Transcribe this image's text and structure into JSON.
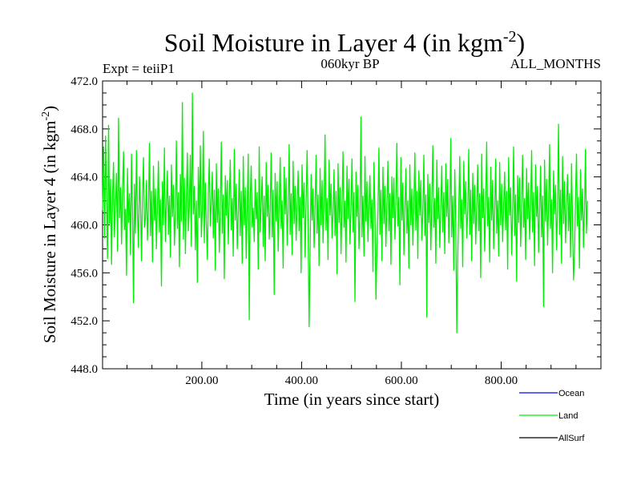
{
  "chart_data": {
    "type": "line",
    "title": {
      "main": "Soil Moisture in Layer 4 (in kgm",
      "sup": "-2",
      "close": ")"
    },
    "header": {
      "left": "Expt = teiiP1",
      "center": "060kyr BP",
      "right": "ALL_MONTHS"
    },
    "xlabel": "Time (in years since start)",
    "ylabel": {
      "main": "Soil Moisture in Layer 4 (in kgm",
      "sup": "-2",
      "close": ")"
    },
    "xlim": [
      1,
      1000
    ],
    "ylim": [
      448.0,
      472.0
    ],
    "x_ticks": [
      200,
      400,
      600,
      800
    ],
    "x_tick_labels": [
      "200.00",
      "400.00",
      "600.00",
      "800.00"
    ],
    "y_ticks": [
      448,
      452,
      456,
      460,
      464,
      468,
      472
    ],
    "y_tick_labels": [
      "448.0",
      "452.0",
      "456.0",
      "460.0",
      "464.0",
      "468.0",
      "472.0"
    ],
    "legend": {
      "placement": "bottom-right",
      "entries": [
        {
          "label": "Ocean",
          "color": "#0000ff"
        },
        {
          "label": "Land",
          "color": "#00ee00"
        },
        {
          "label": "AllSurf",
          "color": "#000000"
        }
      ]
    },
    "series": [
      {
        "name": "Land",
        "color": "#00ee00",
        "x_start": 1,
        "x_step": 2,
        "values": [
          461.2,
          466.5,
          458.9,
          467.4,
          462.0,
          457.2,
          468.3,
          460.1,
          463.8,
          456.7,
          462.5,
          465.2,
          459.0,
          461.7,
          464.3,
          457.8,
          468.9,
          460.6,
          463.1,
          458.4,
          462.9,
          466.1,
          459.6,
          461.3,
          455.8,
          464.7,
          460.2,
          462.6,
          457.5,
          465.9,
          461.0,
          453.5,
          463.4,
          459.3,
          466.2,
          460.8,
          458.1,
          464.0,
          461.9,
          457.0,
          462.2,
          465.6,
          459.8,
          460.5,
          463.7,
          458.7,
          461.4,
          466.8,
          459.1,
          462.8,
          456.9,
          464.9,
          460.4,
          463.0,
          458.0,
          461.6,
          465.3,
          459.4,
          462.1,
          454.9,
          463.6,
          460.0,
          466.4,
          458.6,
          461.8,
          464.5,
          459.2,
          462.4,
          457.3,
          465.0,
          460.7,
          463.3,
          458.3,
          461.1,
          467.0,
          459.7,
          462.7,
          456.5,
          464.2,
          460.3,
          470.2,
          458.8,
          463.9,
          457.6,
          462.3,
          466.0,
          459.5,
          461.5,
          465.8,
          458.2,
          471.0,
          460.9,
          463.2,
          457.9,
          462.0,
          455.2,
          464.8,
          460.6,
          466.6,
          459.0,
          461.2,
          467.8,
          458.5,
          463.5,
          460.1,
          457.1,
          462.6,
          465.5,
          459.9,
          461.7,
          464.4,
          458.9,
          462.9,
          456.2,
          465.1,
          460.2,
          463.0,
          457.7,
          461.3,
          466.9,
          459.3,
          462.5,
          455.5,
          464.1,
          460.8,
          463.7,
          458.4,
          461.9,
          465.4,
          459.6,
          462.2,
          457.4,
          466.3,
          460.4,
          463.4,
          458.0,
          461.0,
          464.6,
          459.1,
          462.8,
          456.8,
          465.7,
          460.0,
          463.1,
          457.2,
          461.6,
          465.9,
          452.1,
          462.1,
          464.9,
          459.8,
          461.4,
          458.6,
          463.8,
          460.5,
          462.7,
          456.3,
          466.5,
          459.4,
          461.8,
          464.0,
          458.2,
          462.4,
          457.0,
          465.2,
          460.7,
          463.3,
          458.8,
          461.1,
          466.0,
          459.0,
          462.9,
          454.2,
          464.3,
          460.3,
          463.6,
          457.8,
          461.5,
          465.6,
          459.7,
          462.0,
          456.4,
          464.8,
          460.9,
          463.9,
          458.3,
          461.2,
          466.7,
          459.2,
          462.6,
          457.5,
          465.3,
          460.1,
          463.2,
          458.7,
          461.7,
          464.5,
          459.5,
          462.3,
          456.0,
          465.0,
          460.6,
          463.5,
          457.3,
          461.9,
          466.2,
          459.9,
          451.5,
          457.9,
          464.2,
          460.4,
          463.0,
          458.1,
          461.3,
          465.8,
          459.3,
          462.5,
          456.6,
          464.7,
          460.0,
          463.7,
          458.5,
          461.6,
          467.5,
          459.6,
          462.2,
          457.1,
          465.4,
          460.8,
          463.4,
          458.9,
          461.0,
          464.6,
          459.1,
          462.8,
          455.9,
          465.1,
          460.2,
          463.1,
          457.6,
          461.8,
          466.1,
          459.8,
          462.0,
          456.9,
          464.9,
          460.5,
          463.8,
          458.4,
          461.4,
          465.5,
          459.4,
          462.7,
          453.6,
          464.4,
          460.7,
          463.3,
          458.0,
          461.1,
          469.0,
          459.0,
          462.4,
          457.4,
          465.7,
          460.3,
          463.6,
          458.6,
          461.5,
          464.1,
          459.7,
          462.1,
          456.1,
          465.2,
          460.9,
          453.8,
          457.7,
          461.2,
          466.4,
          459.2,
          462.9,
          457.0,
          464.8,
          460.1,
          463.2,
          458.2,
          461.7,
          465.3,
          459.5,
          462.6,
          456.7,
          464.0,
          460.6,
          463.9,
          458.8,
          461.9,
          466.8,
          459.9,
          462.3,
          455.0,
          465.6,
          460.4,
          463.5,
          457.5,
          461.3,
          464.7,
          459.3,
          462.0,
          456.4,
          465.0,
          460.0,
          463.0,
          458.3,
          461.6,
          466.0,
          459.6,
          462.8,
          457.2,
          464.5,
          460.8,
          463.7,
          458.7,
          461.0,
          465.8,
          459.1,
          462.5,
          452.3,
          464.2,
          460.2,
          463.4,
          457.9,
          461.8,
          466.6,
          459.8,
          462.2,
          456.8,
          465.4,
          460.5,
          463.1,
          458.1,
          461.4,
          464.9,
          459.4,
          462.7,
          457.6,
          465.1,
          460.7,
          463.8,
          458.5,
          461.1,
          467.2,
          459.0,
          462.4,
          456.2,
          464.6,
          460.3,
          451.0,
          457.3,
          461.5,
          465.7,
          459.7,
          462.1,
          456.5,
          465.3,
          460.9,
          463.6,
          458.9,
          461.2,
          466.3,
          459.2,
          462.9,
          457.0,
          464.3,
          460.1,
          463.3,
          458.4,
          461.7,
          465.0,
          459.5,
          462.6,
          455.6,
          465.9,
          460.6,
          463.0,
          457.8,
          461.9,
          466.9,
          459.9,
          462.3,
          456.9,
          464.8,
          460.4,
          463.7,
          458.0,
          461.3,
          465.5,
          459.3,
          462.0,
          457.4,
          465.2,
          460.0,
          463.4,
          458.6,
          461.6,
          464.4,
          459.6,
          462.8,
          456.3,
          465.6,
          460.8,
          463.1,
          457.5,
          461.0,
          466.5,
          459.1,
          462.5,
          455.3,
          464.1,
          460.2,
          463.9,
          458.2,
          461.8,
          465.8,
          459.8,
          462.2,
          457.1,
          464.7,
          460.5,
          463.5,
          458.8,
          461.4,
          466.2,
          459.4,
          462.7,
          456.6,
          465.0,
          460.7,
          463.2,
          457.7,
          461.1,
          464.9,
          459.0,
          462.4,
          453.2,
          465.4,
          460.3,
          463.8,
          458.3,
          461.5,
          466.7,
          459.7,
          462.1,
          456.0,
          464.5,
          460.9,
          463.3,
          457.9,
          461.2,
          468.4,
          459.2,
          462.9,
          456.8,
          465.7,
          460.1,
          463.6,
          458.5,
          461.7,
          464.2,
          459.5,
          462.6,
          457.3,
          465.1,
          460.6,
          455.4,
          457.6,
          461.9,
          465.9,
          459.9,
          462.3,
          456.4,
          464.6,
          460.4,
          463.0,
          458.1,
          461.3,
          466.3,
          459.3,
          462.0
        ]
      }
    ]
  }
}
